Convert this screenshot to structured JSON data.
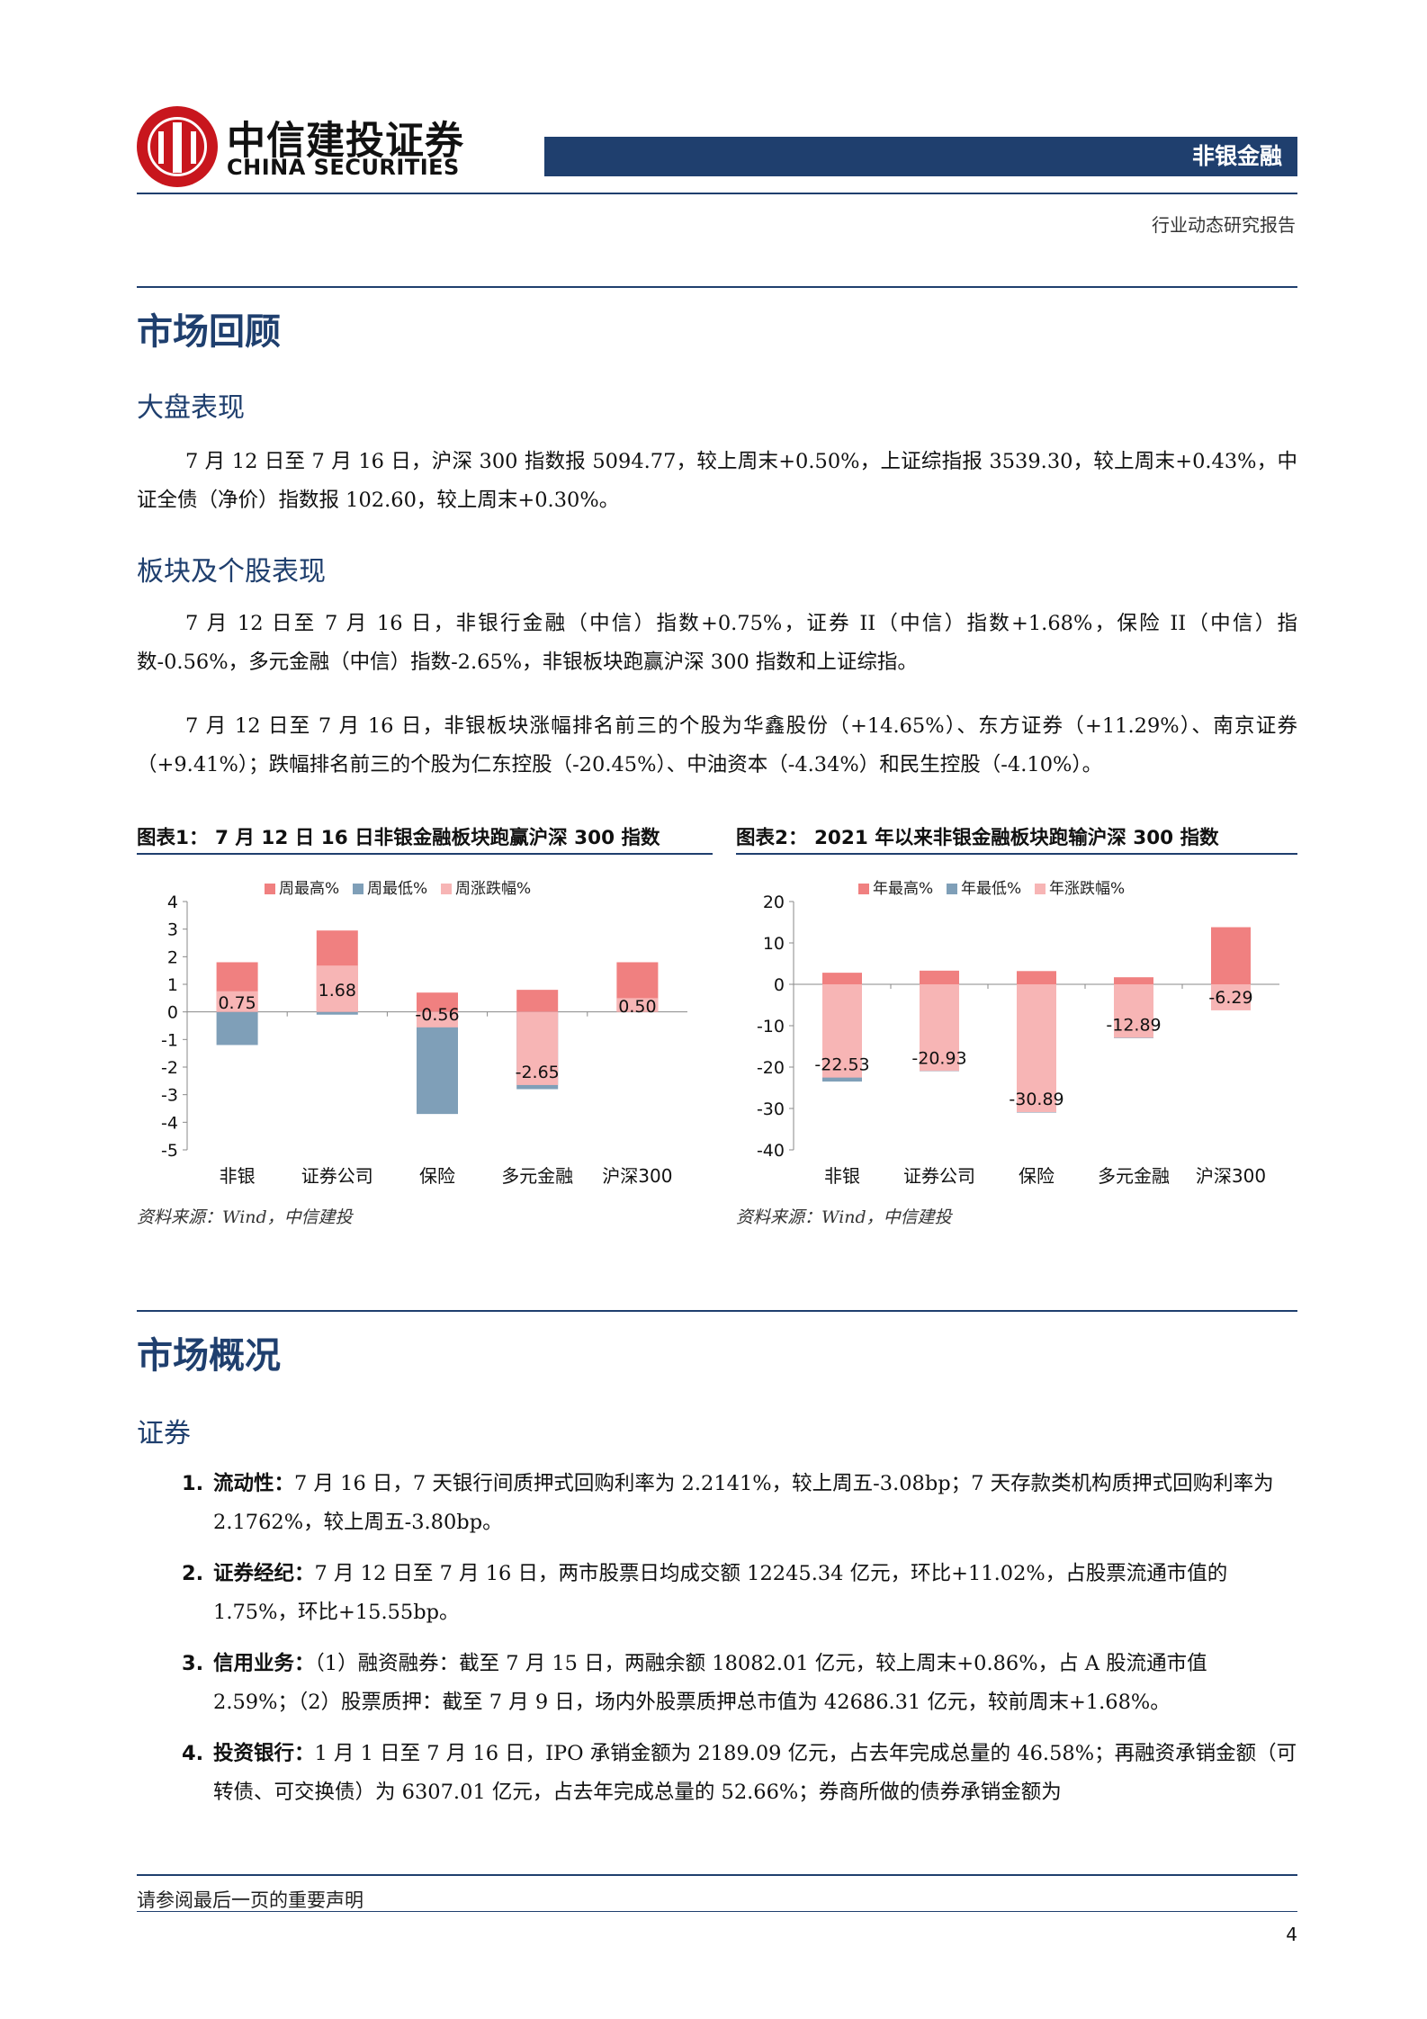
{
  "header": {
    "logo_cn": "中信建投证券",
    "logo_en": "CHINA SECURITIES",
    "sector": "非银金融",
    "report_type": "行业动态研究报告"
  },
  "sections": {
    "review_title": "市场回顾",
    "market_perf_title": "大盘表现",
    "market_perf_text": "7 月 12 日至 7 月 16 日，沪深 300 指数报 5094.77，较上周末+0.50%，上证综指报 3539.30，较上周末+0.43%，中证全债（净价）指数报 102.60，较上周末+0.30%。",
    "sector_perf_title": "板块及个股表现",
    "sector_perf_text1": "7 月 12 日至 7 月 16 日，非银行金融（中信）指数+0.75%，证券 II（中信）指数+1.68%，保险 II（中信）指数-0.56%，多元金融（中信）指数-2.65%，非银板块跑赢沪深 300 指数和上证综指。",
    "sector_perf_text2": "7 月 12 日至 7 月 16 日，非银板块涨幅排名前三的个股为华鑫股份（+14.65%）、东方证券（+11.29%）、南京证券（+9.41%）；跌幅排名前三的个股为仁东控股（-20.45%）、中油资本（-4.34%）和民生控股（-4.10%）。",
    "overview_title": "市场概况",
    "securities_title": "证券"
  },
  "figures": {
    "fig1_title": "图表1：  7 月 12 日 16 日非银金融板块跑赢沪深 300 指数",
    "fig2_title": "图表2：  2021 年以来非银金融板块跑输沪深 300 指数",
    "fig1_source": "资料来源：Wind，中信建投",
    "fig2_source": "资料来源：Wind，中信建投"
  },
  "chart_data": [
    {
      "type": "bar",
      "title": "",
      "categories": [
        "非银",
        "证券公司",
        "保险",
        "多元金融",
        "沪深300"
      ],
      "series": [
        {
          "name": "周最高%",
          "color": "#f08080",
          "values": [
            1.8,
            2.95,
            0.7,
            0.8,
            1.8
          ]
        },
        {
          "name": "周最低%",
          "color": "#7f9fb8",
          "values": [
            -1.2,
            -0.1,
            -3.7,
            -2.8,
            0
          ]
        },
        {
          "name": "周涨跌幅%",
          "color": "#f7b5b5",
          "values": [
            0.75,
            1.68,
            -0.56,
            -2.65,
            0.5
          ]
        }
      ],
      "data_labels": [
        "0.75",
        "1.68",
        "-0.56",
        "-2.65",
        "0.50"
      ],
      "y_ticks": [
        "4",
        "3",
        "2",
        "1",
        "0",
        "-1",
        "-2",
        "-3",
        "-4",
        "-5"
      ],
      "ylim": [
        -5,
        4
      ],
      "legend": "top",
      "grid": false
    },
    {
      "type": "bar",
      "title": "",
      "categories": [
        "非银",
        "证券公司",
        "保险",
        "多元金融",
        "沪深300"
      ],
      "series": [
        {
          "name": "年最高%",
          "color": "#f08080",
          "values": [
            2.8,
            3.3,
            3.2,
            1.7,
            13.8
          ]
        },
        {
          "name": "年最低%",
          "color": "#7f9fb8",
          "values": [
            -23.5,
            -21.0,
            -31.0,
            -13.0,
            -6.2
          ]
        },
        {
          "name": "年涨跌幅%",
          "color": "#f7b5b5",
          "values": [
            -22.53,
            -20.93,
            -30.89,
            -12.89,
            -6.29
          ]
        }
      ],
      "data_labels": [
        "-22.53",
        "-20.93",
        "-30.89",
        "-12.89",
        "-6.29"
      ],
      "y_ticks": [
        "20",
        "10",
        "0",
        "-10",
        "-20",
        "-30",
        "-40"
      ],
      "ylim": [
        -40,
        20
      ],
      "legend": "top",
      "grid": false
    }
  ],
  "list": [
    {
      "num": "1.",
      "lead": "流动性：",
      "text": "7 月 16 日，7 天银行间质押式回购利率为 2.2141%，较上周五-3.08bp；7 天存款类机构质押式回购利率为 2.1762%，较上周五-3.80bp。"
    },
    {
      "num": "2.",
      "lead": "证券经纪：",
      "text": "7 月 12 日至 7 月 16 日，两市股票日均成交额 12245.34 亿元，环比+11.02%，占股票流通市值的 1.75%，环比+15.55bp。"
    },
    {
      "num": "3.",
      "lead": "信用业务：",
      "text": "（1）融资融券：截至 7 月 15 日，两融余额 18082.01 亿元，较上周末+0.86%，占 A 股流通市值 2.59%；（2）股票质押：截至 7 月 9 日，场内外股票质押总市值为 42686.31 亿元，较前周末+1.68%。"
    },
    {
      "num": "4.",
      "lead": "投资银行：",
      "text": "1 月 1 日至 7 月 16 日，IPO 承销金额为 2189.09 亿元，占去年完成总量的 46.58%；再融资承销金额（可转债、可交换债）为 6307.01 亿元，占去年完成总量的 52.66%；券商所做的债券承销金额为"
    }
  ],
  "footer": {
    "note": "请参阅最后一页的重要声明",
    "page": "4"
  }
}
